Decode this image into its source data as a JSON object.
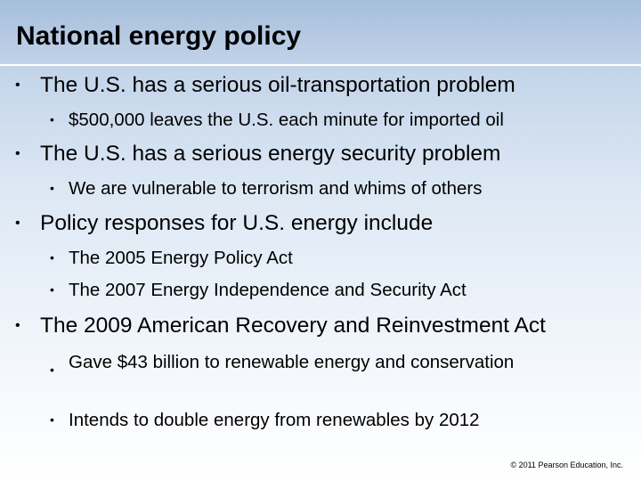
{
  "title": "National energy policy",
  "bullet_glyph": "•",
  "items": [
    {
      "text": "The U.S. has a serious oil-transportation problem",
      "subitems": [
        "$500,000 leaves the U.S. each minute for imported oil"
      ]
    },
    {
      "text": "The U.S. has a serious energy security problem",
      "subitems": [
        "We are vulnerable to terrorism and whims of others"
      ]
    },
    {
      "text": "Policy responses for U.S. energy include",
      "subitems": [
        "The 2005 Energy Policy Act",
        "The 2007 Energy Independence and Security Act"
      ]
    },
    {
      "text": "The 2009 American Recovery and Reinvestment Act",
      "subitems": [
        "Gave $43 billion to renewable energy and conservation",
        "Intends to double energy from renewables by 2012"
      ]
    }
  ],
  "copyright": "© 2011 Pearson Education, Inc."
}
